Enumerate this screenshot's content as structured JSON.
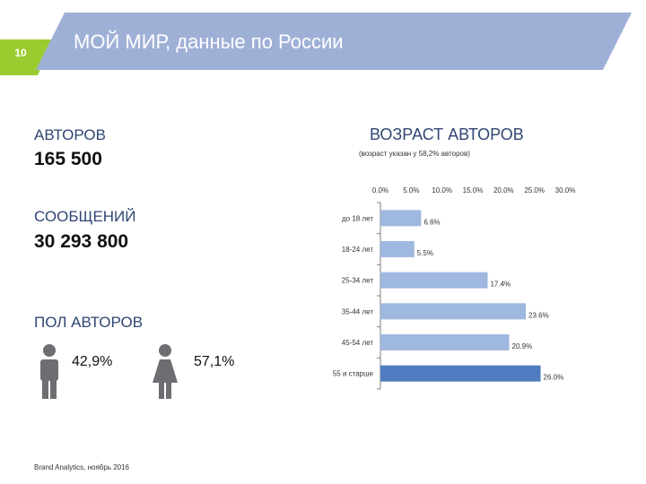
{
  "slide": {
    "page_number": "10",
    "title": "МОЙ МИР, данные по России"
  },
  "stats": {
    "authors_label": "АВТОРОВ",
    "authors_value": "165 500",
    "messages_label": "СООБЩЕНИЙ",
    "messages_value": "30 293 800",
    "gender_label": "ПОЛ АВТОРОВ",
    "male_pct": "42,9%",
    "female_pct": "57,1%"
  },
  "footer": "Brand Analytics, ноябрь 2016",
  "colors": {
    "header_blue": "#9fb0d7",
    "accent_green": "#9bcc2f",
    "bar_light": "#9fb8df",
    "bar_dark": "#4f7cc0",
    "icon_gray": "#6d6e71"
  },
  "icons": [
    "male-person-icon",
    "female-person-icon"
  ],
  "chart_data": {
    "type": "bar",
    "orientation": "horizontal",
    "title": "ВОЗРАСТ АВТОРОВ",
    "subtitle": "(возраст указан у 58,2% авторов)",
    "categories": [
      "до 18 лет",
      "18-24 лет",
      "25-34 лет",
      "35-44 лет",
      "45-54 лет",
      "55 и старше"
    ],
    "values": [
      6.6,
      5.5,
      17.4,
      23.6,
      20.9,
      26.0
    ],
    "value_labels": [
      "6.6%",
      "5.5%",
      "17.4%",
      "23.6%",
      "20.9%",
      "26.0%"
    ],
    "x_ticks": [
      "0.0%",
      "5.0%",
      "10.0%",
      "15.0%",
      "20.0%",
      "25.0%",
      "30.0%"
    ],
    "xlim": [
      0,
      30
    ],
    "x_axis_position": "top",
    "grid": false,
    "highlight_index": 5
  }
}
